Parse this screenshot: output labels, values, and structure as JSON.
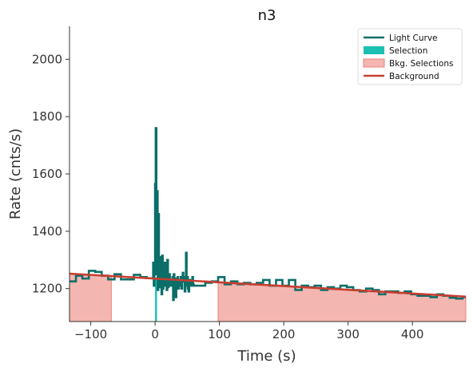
{
  "chart_data": {
    "type": "line",
    "title": "n3",
    "xlabel": "Time (s)",
    "ylabel": "Rate (cnts/s)",
    "xlim": [
      -133,
      483
    ],
    "ylim": [
      1085,
      2115
    ],
    "xticks": [
      -100,
      0,
      100,
      200,
      300,
      400
    ],
    "yticks": [
      1200,
      1400,
      1600,
      1800,
      2000
    ],
    "xtick_labels": [
      "−100",
      "0",
      "100",
      "200",
      "300",
      "400"
    ],
    "ytick_labels": [
      "1200",
      "1400",
      "1600",
      "1800",
      "2000"
    ],
    "legend": {
      "position": "top-right",
      "entries": [
        {
          "label": "Light Curve",
          "color": "#0b6e69",
          "kind": "line"
        },
        {
          "label": "Selection",
          "color": "#1dbfb2",
          "kind": "patch"
        },
        {
          "label": "Bkg. Selections",
          "color": "#f4b6b0",
          "kind": "patch"
        },
        {
          "label": "Background",
          "color": "#c73e30",
          "kind": "line"
        }
      ]
    },
    "colors": {
      "light_curve": "#0b6e69",
      "selection": "#1dbfb2",
      "bkg_fill": "#f4b6b0",
      "bkg_edge": "#e8827a",
      "background": "#c73e30"
    },
    "selection": [
      0,
      3
    ],
    "bkg_selections": [
      [
        -133,
        -68
      ],
      [
        98,
        483
      ]
    ],
    "background": {
      "x": [
        -133,
        483
      ],
      "y": [
        1252,
        1172
      ]
    },
    "light_curve": {
      "step_x": [
        -133,
        -123,
        -113,
        -103,
        -93,
        -83,
        -73,
        -63,
        -53,
        -43,
        -33,
        -23,
        -13,
        -3,
        -2,
        -1,
        0,
        1,
        2,
        3,
        4,
        5,
        6,
        7,
        8,
        9,
        10,
        11,
        12,
        13,
        14,
        15,
        16,
        17,
        18,
        19,
        20,
        21,
        22,
        23,
        24,
        25,
        26,
        27,
        28,
        29,
        30,
        31,
        32,
        33,
        34,
        35,
        36,
        37,
        38,
        39,
        40,
        41,
        42,
        43,
        44,
        45,
        46,
        47,
        48,
        49,
        50,
        51,
        52,
        53,
        54,
        55,
        56,
        57,
        58,
        59,
        60,
        68,
        78,
        88,
        98,
        108,
        118,
        128,
        138,
        148,
        158,
        168,
        178,
        188,
        198,
        208,
        218,
        228,
        238,
        248,
        258,
        268,
        278,
        288,
        298,
        308,
        318,
        328,
        338,
        348,
        358,
        368,
        378,
        388,
        398,
        408,
        418,
        428,
        438,
        448,
        458,
        468,
        478,
        483
      ],
      "step_y": [
        1225,
        1245,
        1235,
        1262,
        1258,
        1245,
        1232,
        1250,
        1232,
        1232,
        1248,
        1240,
        1236,
        1290,
        1210,
        1280,
        1565,
        1760,
        1250,
        1540,
        1195,
        1460,
        1220,
        1300,
        1205,
        1310,
        1180,
        1315,
        1200,
        1270,
        1230,
        1290,
        1210,
        1265,
        1195,
        1300,
        1205,
        1245,
        1250,
        1230,
        1210,
        1215,
        1225,
        1240,
        1160,
        1250,
        1200,
        1235,
        1170,
        1230,
        1210,
        1240,
        1200,
        1220,
        1230,
        1210,
        1240,
        1200,
        1225,
        1255,
        1230,
        1240,
        1190,
        1235,
        1325,
        1210,
        1240,
        1200,
        1190,
        1230,
        1220,
        1225,
        1210,
        1230,
        1240,
        1215,
        1210,
        1210,
        1220,
        1225,
        1240,
        1215,
        1225,
        1215,
        1220,
        1215,
        1220,
        1230,
        1210,
        1230,
        1210,
        1230,
        1195,
        1210,
        1205,
        1210,
        1195,
        1205,
        1200,
        1210,
        1205,
        1195,
        1190,
        1200,
        1195,
        1180,
        1190,
        1190,
        1185,
        1190,
        1180,
        1175,
        1175,
        1170,
        1180,
        1175,
        1168,
        1165,
        1170
      ]
    }
  }
}
